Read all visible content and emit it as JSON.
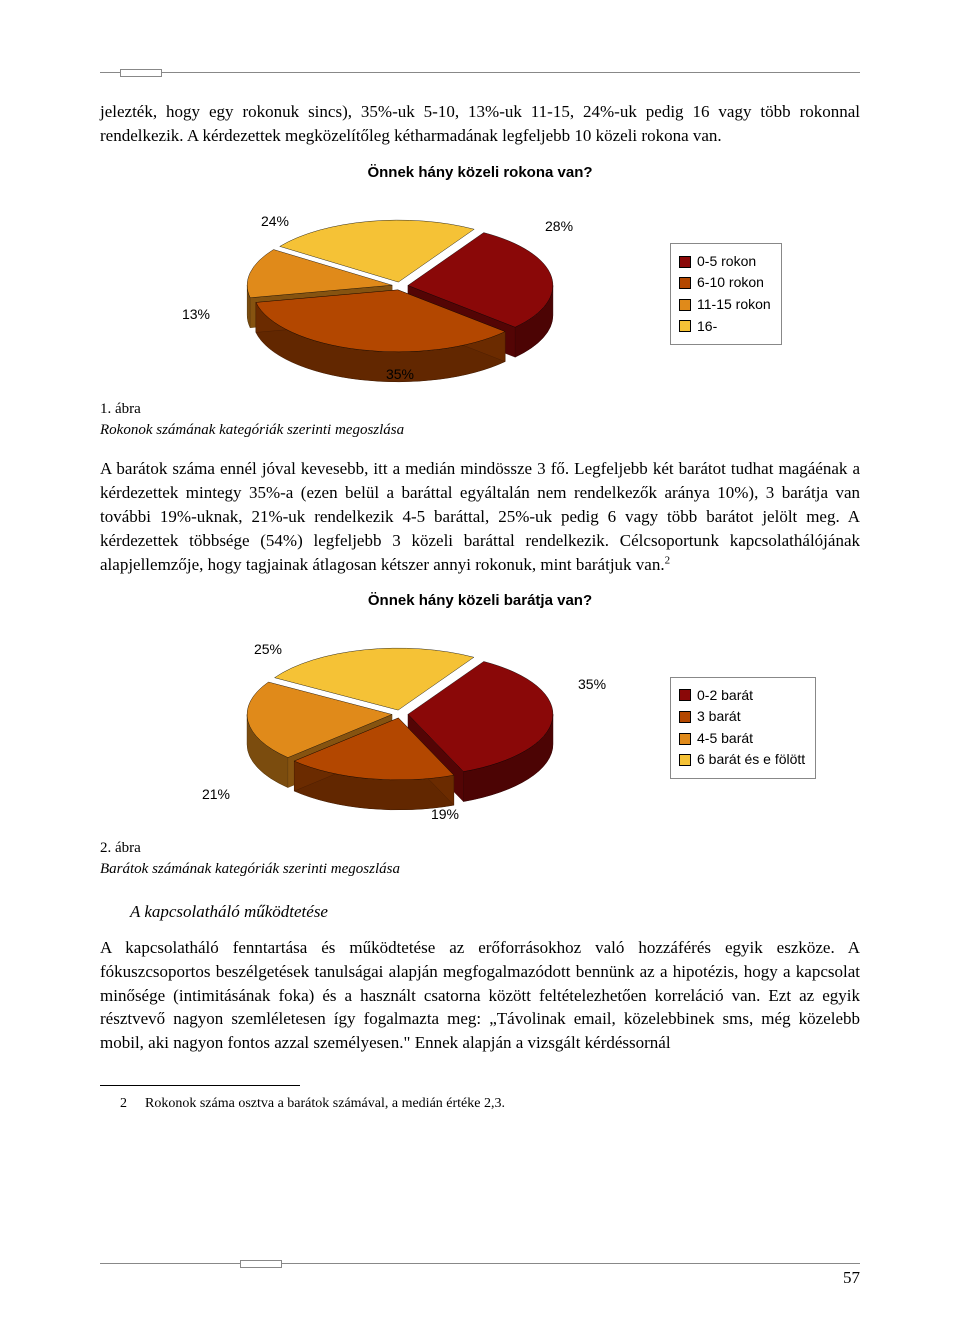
{
  "page_number": "57",
  "intro_para": "jelezték, hogy egy rokonuk sincs), 35%-uk 5-10, 13%-uk 11-15, 24%-uk pedig 16 vagy több rokonnal rendelkezik. A kérdezettek megközelítőleg kétharmadának legfeljebb 10 közeli rokona van.",
  "chart1": {
    "type": "pie-3d",
    "title": "Önnek hány közeli rokona van?",
    "background_color": "#ffffff",
    "slices": [
      {
        "label": "0-5 rokon",
        "value": 28,
        "color": "#8a0808",
        "data_label": "28%"
      },
      {
        "label": "6-10 rokon",
        "value": 35,
        "color": "#b34700",
        "data_label": "35%"
      },
      {
        "label": "11-15 rokon",
        "value": 13,
        "color": "#e08a1a",
        "data_label": "13%"
      },
      {
        "label": "16-",
        "value": 24,
        "color": "#f5c236",
        "data_label": "24%"
      }
    ],
    "label_fontsize": 14,
    "legend_items": [
      {
        "text": "0-5 rokon",
        "color": "#8a0808"
      },
      {
        "text": "6-10 rokon",
        "color": "#b34700"
      },
      {
        "text": "11-15 rokon",
        "color": "#e08a1a"
      },
      {
        "text": "16-",
        "color": "#f5c236"
      }
    ]
  },
  "fig1_label": "1. ábra",
  "fig1_caption": "Rokonok számának kategóriák szerinti megoszlása",
  "mid_para": "A barátok száma ennél jóval kevesebb, itt a medián mindössze 3 fő. Legfeljebb két barátot tudhat magáénak a kérdezettek mintegy 35%-a (ezen belül a baráttal egyáltalán nem rendelkezők aránya 10%), 3 barátja van további 19%-uknak, 21%-uk rendelkezik 4-5 baráttal, 25%-uk pedig 6 vagy több barátot jelölt meg. A kérdezettek többsége (54%) legfeljebb 3 közeli baráttal rendelkezik. Célcsoportunk kapcsolathálójának alapjellemzője, hogy tagjainak átlagosan kétszer annyi rokonuk, mint barátjuk van.",
  "footnote_marker": "2",
  "chart2": {
    "type": "pie-3d",
    "title": "Önnek hány közeli barátja van?",
    "background_color": "#ffffff",
    "slices": [
      {
        "label": "0-2 barát",
        "value": 35,
        "color": "#8a0808",
        "data_label": "35%"
      },
      {
        "label": "3 barát",
        "value": 19,
        "color": "#b34700",
        "data_label": "19%"
      },
      {
        "label": "4-5 barát",
        "value": 21,
        "color": "#e08a1a",
        "data_label": "21%"
      },
      {
        "label": "6 barát és e fölött",
        "value": 25,
        "color": "#f5c236",
        "data_label": "25%"
      }
    ],
    "label_fontsize": 14,
    "legend_items": [
      {
        "text": "0-2 barát",
        "color": "#8a0808"
      },
      {
        "text": "3 barát",
        "color": "#b34700"
      },
      {
        "text": "4-5 barát",
        "color": "#e08a1a"
      },
      {
        "text": "6 barát és e fölött",
        "color": "#f5c236"
      }
    ]
  },
  "fig2_label": "2. ábra",
  "fig2_caption": "Barátok számának kategóriák szerinti megoszlása",
  "section_title": "A kapcsolatháló működtetése",
  "last_para": "A kapcsolatháló fenntartása és működtetése az erőforrásokhoz való hozzáférés egyik eszköze. A fókuszcsoportos beszélgetések tanulságai alapján megfogalmazódott bennünk az a hipotézis, hogy a kapcsolat minősége (intimitásának foka) és a használt csatorna között feltételezhetően korreláció van. Ezt az egyik résztvevő nagyon szemléletesen így fogalmazta meg: „Távolinak email, közelebbinek sms, még közelebb mobil, aki nagyon fontos azzal személyesen.\" Ennek alapján a vizsgált kérdéssornál",
  "footnote_num": "2",
  "footnote_text": "Rokonok száma osztva a barátok számával, a medián értéke 2,3."
}
